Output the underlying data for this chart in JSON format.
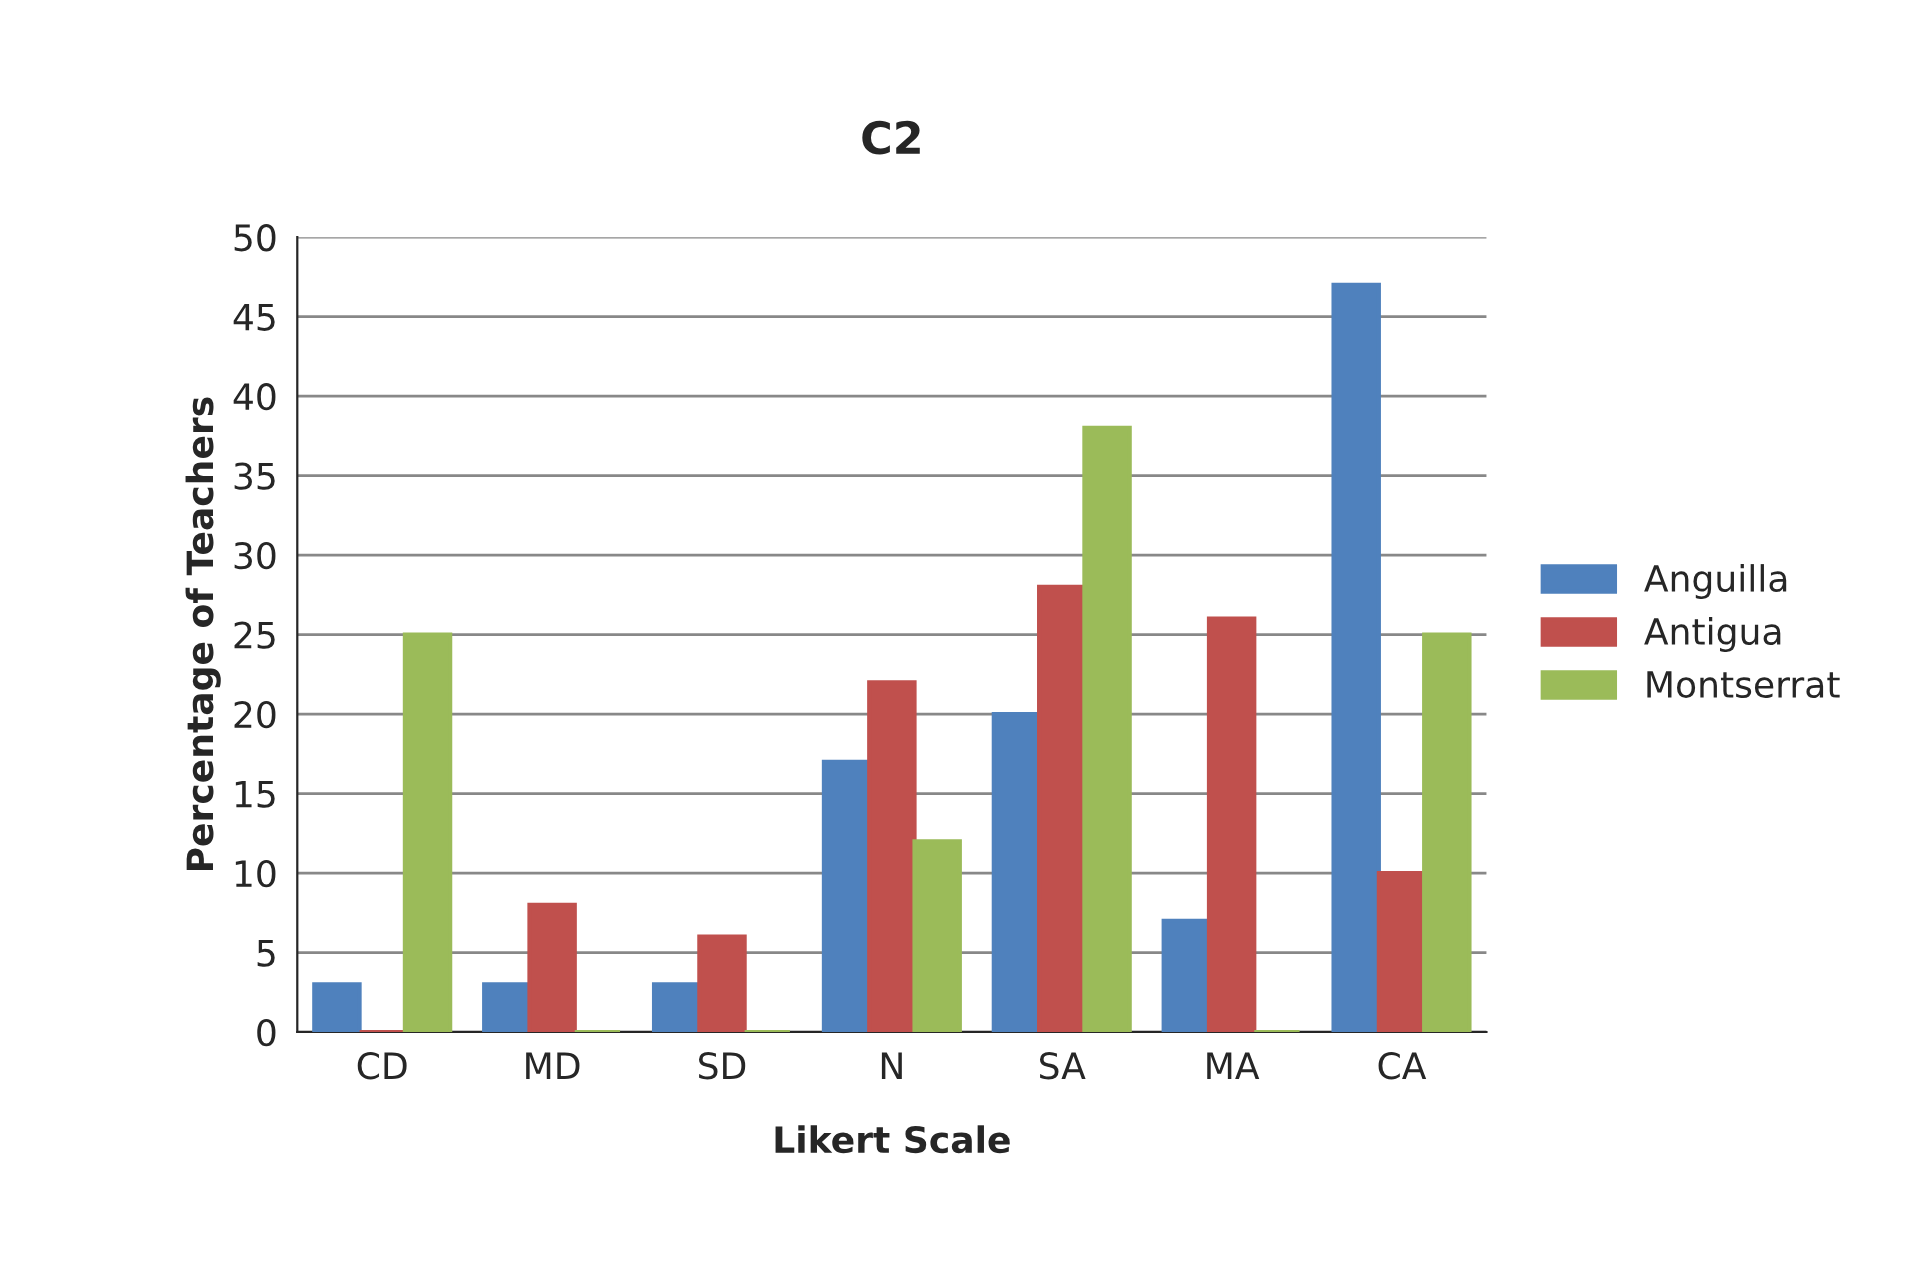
{
  "chart_data": {
    "type": "bar",
    "title": "C2",
    "xlabel": "Likert Scale",
    "ylabel": "Percentage of Teachers",
    "categories": [
      "CD",
      "MD",
      "SD",
      "N",
      "SA",
      "MA",
      "CA"
    ],
    "series": [
      {
        "name": "Anguilla",
        "color": "#4f81bd",
        "values": [
          3,
          3,
          3,
          17,
          20,
          7,
          47
        ]
      },
      {
        "name": "Antigua",
        "color": "#c0504d",
        "values": [
          0,
          8,
          6,
          22,
          28,
          26,
          10
        ]
      },
      {
        "name": "Montserrat",
        "color": "#9bbb59",
        "values": [
          25,
          0,
          0,
          12,
          38,
          0,
          25
        ]
      }
    ],
    "ylim": [
      0,
      50
    ],
    "yticks": [
      0,
      5,
      10,
      15,
      20,
      25,
      30,
      35,
      40,
      45,
      50
    ],
    "grid": "y",
    "legend": "right"
  }
}
